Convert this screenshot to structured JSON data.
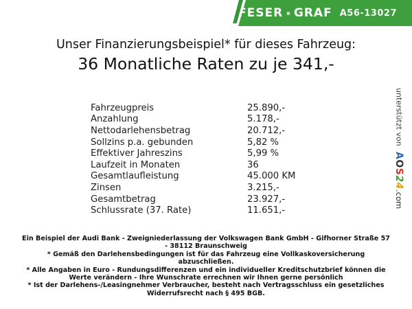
{
  "banner": {
    "brand_left": "FESER",
    "brand_right": "GRAF",
    "code": "A56-13027",
    "green": "#3EA03C"
  },
  "heading": {
    "title": "Unser Finanzierungsbeispiel* für dieses Fahrzeug:",
    "subtitle": "36 Monatliche Raten zu je 341,-"
  },
  "table": {
    "rows": [
      {
        "label": "Fahrzeugpreis",
        "value": "25.890,-"
      },
      {
        "label": "Anzahlung",
        "value": "5.178,-"
      },
      {
        "label": "Nettodarlehensbetrag",
        "value": "20.712,-"
      },
      {
        "label": "Sollzins p.a. gebunden",
        "value": "5,82 %"
      },
      {
        "label": "Effektiver Jahreszins",
        "value": "5,99 %"
      },
      {
        "label": "Laufzeit in Monaten",
        "value": "36"
      },
      {
        "label": "Gesamtlaufleistung",
        "value": "45.000 KM"
      },
      {
        "label": "Zinsen",
        "value": "3.215,-"
      },
      {
        "label": "Gesamtbetrag",
        "value": "23.927,-"
      },
      {
        "label": "Schlussrate (37. Rate)",
        "value": "11.651,-"
      }
    ]
  },
  "sidebar": {
    "prefix": "unterstützt von",
    "logo_letters": [
      {
        "ch": "A",
        "color": "#2a6db5"
      },
      {
        "ch": "O",
        "color": "#333333"
      },
      {
        "ch": "S",
        "color": "#d2342a"
      },
      {
        "ch": "2",
        "color": "#3fa03c"
      },
      {
        "ch": "4",
        "color": "#e8a30a"
      }
    ],
    "suffix": ".com"
  },
  "footnotes": [
    "Ein Beispiel der Audi Bank - Zweigniederlassung der Volkswagen Bank GmbH - Gifhorner Straße 57 - 38112 Braunschweig",
    "* Gemäß den Darlehensbedingungen ist für das Fahrzeug eine Vollkaskoversicherung abzuschließen.",
    "* Alle Angaben in Euro - Rundungsdifferenzen und ein individueller Kreditschutzbrief können die Werte verändern - Ihre Wunschrate errechnen wir Ihnen gerne persönlich",
    "* Ist der Darlehens-/Leasingnehmer Verbraucher, besteht nach Vertragsschluss ein gesetzliches Widerrufsrecht nach § 495 BGB."
  ]
}
